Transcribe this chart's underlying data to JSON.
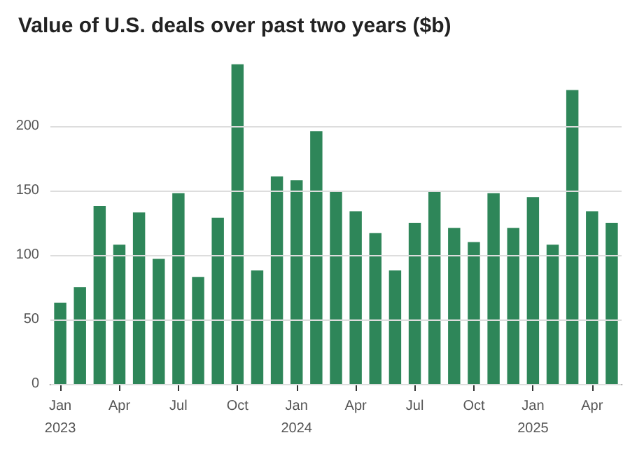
{
  "chart_data": {
    "type": "bar",
    "title": "Value of U.S. deals over past two years ($b)",
    "categories": [
      "Jan\n2023",
      null,
      null,
      "Apr",
      null,
      null,
      "Jul",
      null,
      null,
      "Oct",
      null,
      null,
      "Jan\n2024",
      null,
      null,
      "Apr",
      null,
      null,
      "Jul",
      null,
      null,
      "Oct",
      null,
      null,
      "Jan\n2025",
      null,
      null,
      "Apr",
      null
    ],
    "values": [
      63,
      75,
      138,
      108,
      133,
      97,
      148,
      83,
      129,
      248,
      88,
      161,
      158,
      196,
      149,
      134,
      117,
      88,
      125,
      150,
      121,
      110,
      148,
      121,
      145,
      108,
      228,
      134,
      125
    ],
    "color": "#2e8659",
    "ylim": [
      0,
      250
    ],
    "yticks": [
      0,
      50,
      100,
      150,
      200
    ],
    "grid": "y"
  }
}
